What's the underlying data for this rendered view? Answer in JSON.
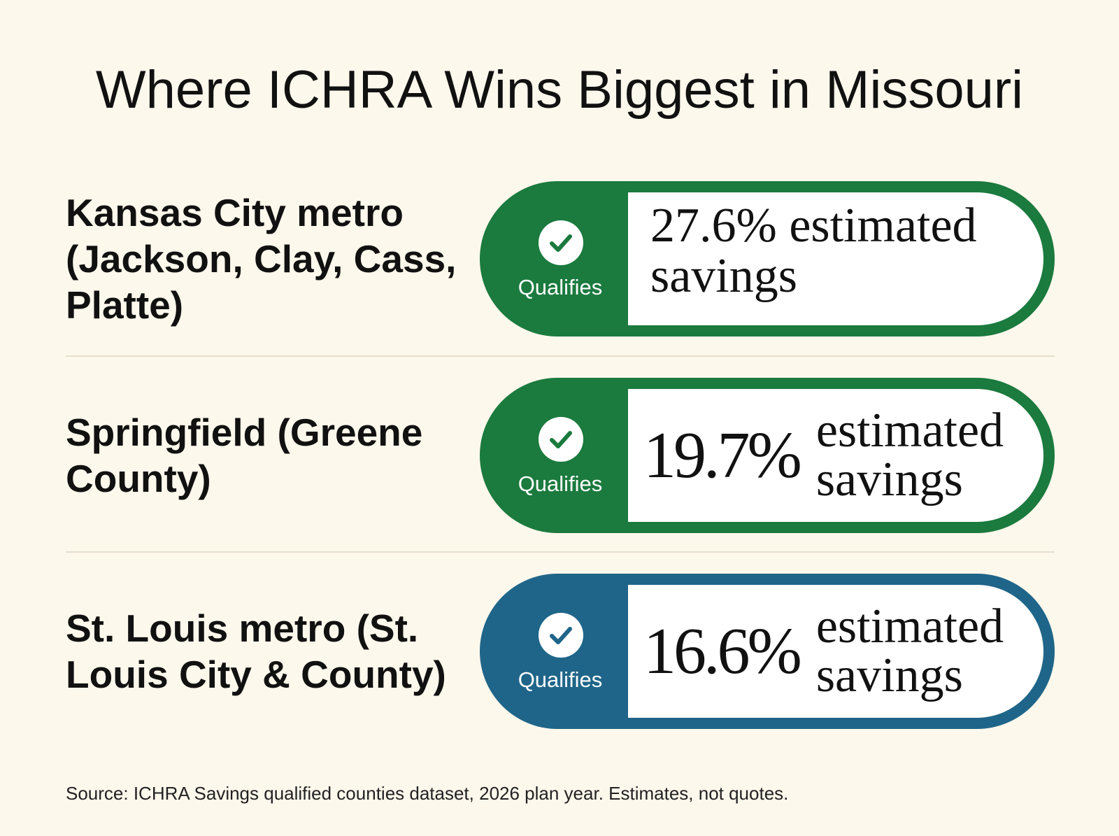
{
  "title": "Where ICHRA Wins Biggest in Missouri",
  "badge_label": "Qualifies",
  "source": "Source: ICHRA Savings qualified counties dataset, 2026 plan year. Estimates, not quotes.",
  "colors": {
    "background": "#fdf8ec",
    "green": "#1b7a3e",
    "blue": "#1f6589",
    "divider": "#e6dfcf"
  },
  "chart_data": {
    "type": "bar",
    "title": "Where ICHRA Wins Biggest in Missouri",
    "categories": [
      "Kansas City metro (Jackson, Clay, Cass, Platte)",
      "Springfield (Greene County)",
      "St. Louis metro (St. Louis City & County)"
    ],
    "values": [
      27.6,
      19.7,
      16.6
    ],
    "unit": "%",
    "value_label": "estimated savings",
    "status": [
      "Qualifies",
      "Qualifies",
      "Qualifies"
    ],
    "rows": [
      {
        "region": "Kansas City metro (Jackson, Clay, Cass, Platte)",
        "value_text": "27.6%",
        "value": 27.6,
        "label": "estimated savings",
        "status": "Qualifies",
        "color": "#1b7a3e"
      },
      {
        "region": "Springfield (Greene County)",
        "value_text": "19.7%",
        "value": 19.7,
        "label": "estimated savings",
        "status": "Qualifies",
        "color": "#1b7a3e"
      },
      {
        "region": "St. Louis metro (St. Louis City & County)",
        "value_text": "16.6%",
        "value": 16.6,
        "label": "estimated savings",
        "status": "Qualifies",
        "color": "#1f6589"
      }
    ]
  }
}
